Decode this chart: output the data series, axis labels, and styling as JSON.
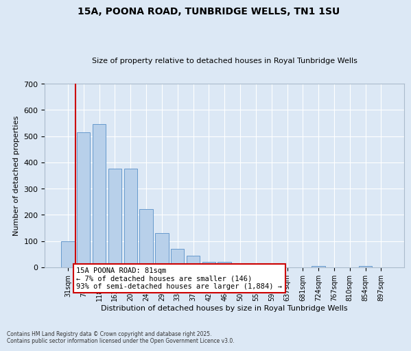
{
  "title": "15A, POONA ROAD, TUNBRIDGE WELLS, TN1 1SU",
  "subtitle": "Size of property relative to detached houses in Royal Tunbridge Wells",
  "xlabel": "Distribution of detached houses by size in Royal Tunbridge Wells",
  "ylabel": "Number of detached properties",
  "footer_line1": "Contains HM Land Registry data © Crown copyright and database right 2025.",
  "footer_line2": "Contains public sector information licensed under the Open Government Licence v3.0.",
  "bar_labels": [
    "31sqm",
    "74sqm",
    "118sqm",
    "161sqm",
    "204sqm",
    "248sqm",
    "291sqm",
    "334sqm",
    "377sqm",
    "421sqm",
    "464sqm",
    "507sqm",
    "551sqm",
    "594sqm",
    "637sqm",
    "681sqm",
    "724sqm",
    "767sqm",
    "810sqm",
    "854sqm",
    "897sqm"
  ],
  "bar_values": [
    98,
    515,
    545,
    375,
    375,
    222,
    130,
    70,
    43,
    20,
    20,
    12,
    12,
    0,
    0,
    0,
    5,
    0,
    0,
    5,
    0
  ],
  "bar_color": "#b8d0ea",
  "bar_edge_color": "#6699cc",
  "background_color": "#dce8f5",
  "grid_color": "#ffffff",
  "vline_x": 0.5,
  "vline_color": "#cc0000",
  "annotation_line1": "15A POONA ROAD: 81sqm",
  "annotation_line2": "← 7% of detached houses are smaller (146)",
  "annotation_line3": "93% of semi-detached houses are larger (1,884) →",
  "annotation_box_color": "#ffffff",
  "annotation_box_edge": "#cc0000",
  "ylim": [
    0,
    700
  ],
  "yticks": [
    0,
    100,
    200,
    300,
    400,
    500,
    600,
    700
  ]
}
